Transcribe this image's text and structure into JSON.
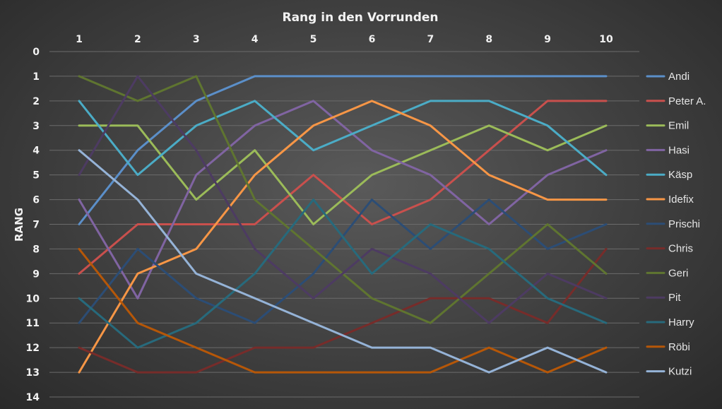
{
  "chart_data": {
    "type": "line",
    "title": "Rang in den Vorrunden",
    "ylabel": "RANG",
    "xlabel": "",
    "x": [
      1,
      2,
      3,
      4,
      5,
      6,
      7,
      8,
      9,
      10
    ],
    "ylim": [
      0,
      14
    ],
    "y_reversed": true,
    "y_ticks": [
      0,
      1,
      2,
      3,
      4,
      5,
      6,
      7,
      8,
      9,
      10,
      11,
      12,
      13,
      14
    ],
    "x_axis_position": "top",
    "grid": true,
    "legend_position": "right",
    "series": [
      {
        "name": "Andi",
        "color": "#5b8fc9",
        "values": [
          7,
          4,
          2,
          1,
          1,
          1,
          1,
          1,
          1,
          1
        ]
      },
      {
        "name": "Peter A.",
        "color": "#c9504d",
        "values": [
          9,
          7,
          7,
          7,
          5,
          7,
          6,
          4,
          2,
          2
        ]
      },
      {
        "name": "Emil",
        "color": "#9bbb59",
        "values": [
          3,
          3,
          6,
          4,
          7,
          5,
          4,
          3,
          4,
          3
        ]
      },
      {
        "name": "Hasi",
        "color": "#8064a2",
        "values": [
          6,
          10,
          5,
          3,
          2,
          4,
          5,
          7,
          5,
          4
        ]
      },
      {
        "name": "Käsp",
        "color": "#4bacc6",
        "values": [
          2,
          5,
          3,
          2,
          4,
          3,
          2,
          2,
          3,
          5
        ]
      },
      {
        "name": "Idefix",
        "color": "#f79646",
        "values": [
          13,
          9,
          8,
          5,
          3,
          2,
          3,
          5,
          6,
          6
        ]
      },
      {
        "name": "Prischi",
        "color": "#2c4d75",
        "values": [
          11,
          8,
          10,
          11,
          9,
          6,
          8,
          6,
          8,
          7
        ]
      },
      {
        "name": "Chris",
        "color": "#772c2a",
        "values": [
          12,
          13,
          13,
          12,
          12,
          11,
          10,
          10,
          11,
          8
        ]
      },
      {
        "name": "Geri",
        "color": "#5f7530",
        "values": [
          1,
          2,
          1,
          6,
          8,
          10,
          11,
          9,
          7,
          9
        ]
      },
      {
        "name": "Pit",
        "color": "#4d3b62",
        "values": [
          5,
          1,
          4,
          8,
          10,
          8,
          9,
          11,
          9,
          10
        ]
      },
      {
        "name": "Harry",
        "color": "#276a7c",
        "values": [
          10,
          12,
          11,
          9,
          6,
          9,
          7,
          8,
          10,
          11
        ]
      },
      {
        "name": "Röbi",
        "color": "#b65708",
        "values": [
          8,
          11,
          12,
          13,
          13,
          13,
          13,
          12,
          13,
          12
        ]
      },
      {
        "name": "Kutzi",
        "color": "#95b3d7",
        "values": [
          4,
          6,
          9,
          10,
          11,
          12,
          12,
          13,
          12,
          13
        ]
      }
    ]
  }
}
